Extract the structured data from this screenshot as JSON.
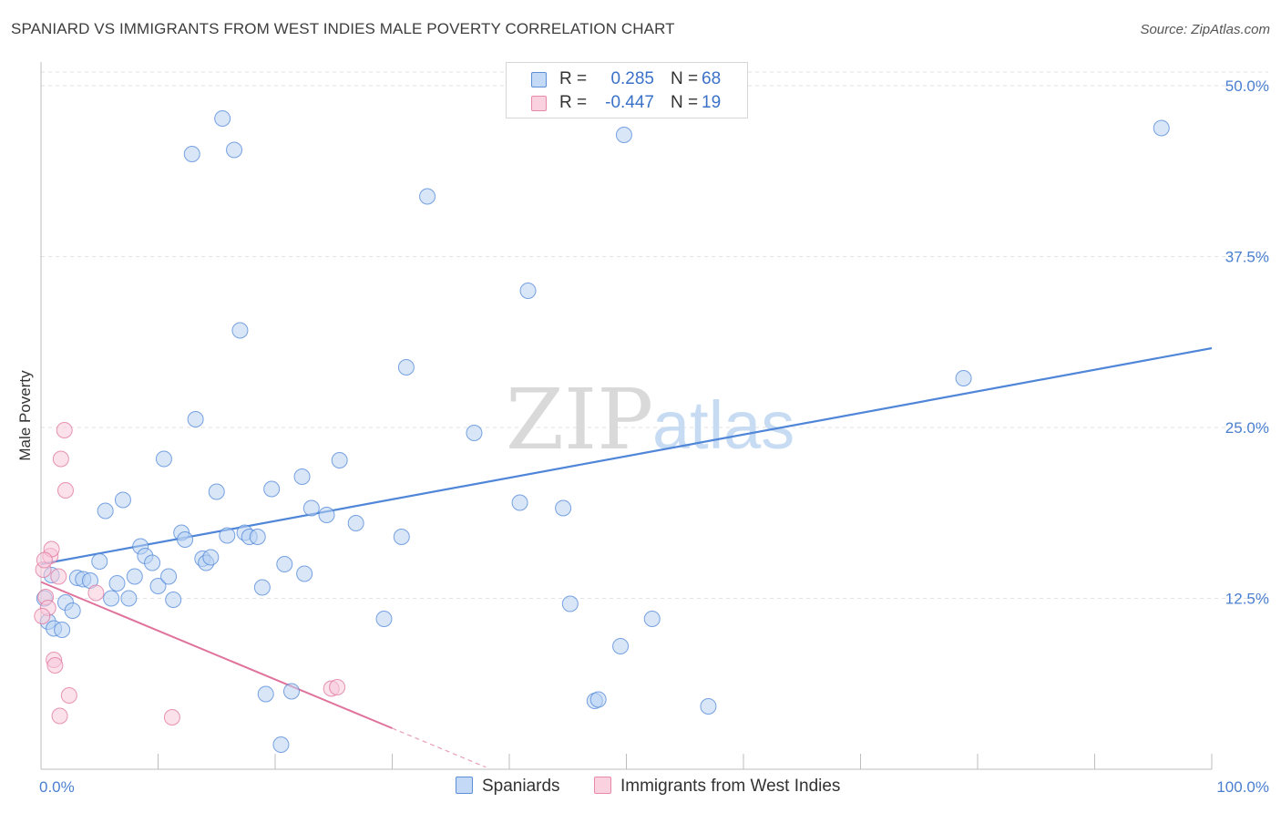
{
  "title": "SPANIARD VS IMMIGRANTS FROM WEST INDIES MALE POVERTY CORRELATION CHART",
  "source": "Source: ZipAtlas.com",
  "watermark": {
    "zip": "ZIP",
    "atlas": "atlas"
  },
  "legend_stats": [
    {
      "r_label": "R =",
      "r_value": "0.285",
      "n_label": "N =",
      "n_value": "68",
      "color": "#a9c8f0"
    },
    {
      "r_label": "R =",
      "r_value": "-0.447",
      "n_label": "N =",
      "n_value": "19",
      "color": "#f6bdd0"
    }
  ],
  "chart_data": {
    "type": "scatter",
    "title": "SPANIARD VS IMMIGRANTS FROM WEST INDIES MALE POVERTY CORRELATION CHART",
    "xlabel": "",
    "ylabel": "Male Poverty",
    "xlim": [
      0,
      100
    ],
    "ylim": [
      0,
      52
    ],
    "x_tick_labels": [
      "0.0%",
      "100.0%"
    ],
    "y_ticks": [
      12.5,
      25.0,
      37.5,
      50.0
    ],
    "y_tick_labels": [
      "12.5%",
      "25.0%",
      "37.5%",
      "50.0%"
    ],
    "grid": true,
    "legend_position": "top-center",
    "series": [
      {
        "name": "Spaniards",
        "color": "#4f86d8",
        "fill": "#b8d2f3",
        "trend": {
          "x": [
            0,
            100
          ],
          "y": [
            15.0,
            30.8
          ]
        },
        "points": [
          [
            0.3,
            12.5
          ],
          [
            0.6,
            10.8
          ],
          [
            1.1,
            10.3
          ],
          [
            1.8,
            10.2
          ],
          [
            2.1,
            12.2
          ],
          [
            2.7,
            11.6
          ],
          [
            3.1,
            14.0
          ],
          [
            3.6,
            13.9
          ],
          [
            4.2,
            13.8
          ],
          [
            5.0,
            15.2
          ],
          [
            5.5,
            18.9
          ],
          [
            6.0,
            12.5
          ],
          [
            6.5,
            13.6
          ],
          [
            7.0,
            19.7
          ],
          [
            7.5,
            12.5
          ],
          [
            8.0,
            14.1
          ],
          [
            8.5,
            16.3
          ],
          [
            8.9,
            15.6
          ],
          [
            9.5,
            15.1
          ],
          [
            10.0,
            13.4
          ],
          [
            10.5,
            22.7
          ],
          [
            10.9,
            14.1
          ],
          [
            11.3,
            12.4
          ],
          [
            12.0,
            17.3
          ],
          [
            12.3,
            16.8
          ],
          [
            12.9,
            45.0
          ],
          [
            13.2,
            25.6
          ],
          [
            13.8,
            15.4
          ],
          [
            14.1,
            15.1
          ],
          [
            14.5,
            15.5
          ],
          [
            15.0,
            20.3
          ],
          [
            15.5,
            47.6
          ],
          [
            15.9,
            17.1
          ],
          [
            16.5,
            45.3
          ],
          [
            17.0,
            32.1
          ],
          [
            17.4,
            17.3
          ],
          [
            17.8,
            17.0
          ],
          [
            18.5,
            17.0
          ],
          [
            18.9,
            13.3
          ],
          [
            19.2,
            5.5
          ],
          [
            19.7,
            20.5
          ],
          [
            20.5,
            1.8
          ],
          [
            20.8,
            15.0
          ],
          [
            21.4,
            5.7
          ],
          [
            22.3,
            21.4
          ],
          [
            22.5,
            14.3
          ],
          [
            23.1,
            19.1
          ],
          [
            24.4,
            18.6
          ],
          [
            25.5,
            22.6
          ],
          [
            26.9,
            18.0
          ],
          [
            29.3,
            11.0
          ],
          [
            30.8,
            17.0
          ],
          [
            31.2,
            29.4
          ],
          [
            33.0,
            41.9
          ],
          [
            37.0,
            24.6
          ],
          [
            40.9,
            19.5
          ],
          [
            41.6,
            35.0
          ],
          [
            44.6,
            19.1
          ],
          [
            45.2,
            12.1
          ],
          [
            47.3,
            5.0
          ],
          [
            47.6,
            5.1
          ],
          [
            49.8,
            46.4
          ],
          [
            49.5,
            9.0
          ],
          [
            52.2,
            11.0
          ],
          [
            57.0,
            4.6
          ],
          [
            78.8,
            28.6
          ],
          [
            95.7,
            46.9
          ],
          [
            0.9,
            14.2
          ]
        ]
      },
      {
        "name": "Immigrants from West Indies",
        "color": "#e0739c",
        "fill": "#f8c8d8",
        "trend": {
          "x": [
            0,
            30
          ],
          "y": [
            13.7,
            3.0
          ]
        },
        "trend_dashed": {
          "x": [
            30,
            38
          ],
          "y": [
            3.0,
            0.15
          ]
        },
        "points": [
          [
            0.2,
            14.6
          ],
          [
            0.4,
            12.6
          ],
          [
            0.6,
            11.8
          ],
          [
            0.8,
            15.6
          ],
          [
            0.9,
            16.1
          ],
          [
            1.1,
            8.0
          ],
          [
            1.2,
            7.6
          ],
          [
            1.5,
            14.1
          ],
          [
            1.6,
            3.9
          ],
          [
            1.7,
            22.7
          ],
          [
            2.0,
            24.8
          ],
          [
            2.1,
            20.4
          ],
          [
            2.4,
            5.4
          ],
          [
            4.7,
            12.9
          ],
          [
            11.2,
            3.8
          ],
          [
            24.8,
            5.9
          ],
          [
            25.3,
            6.0
          ],
          [
            0.1,
            11.2
          ],
          [
            0.3,
            15.3
          ]
        ]
      }
    ]
  }
}
